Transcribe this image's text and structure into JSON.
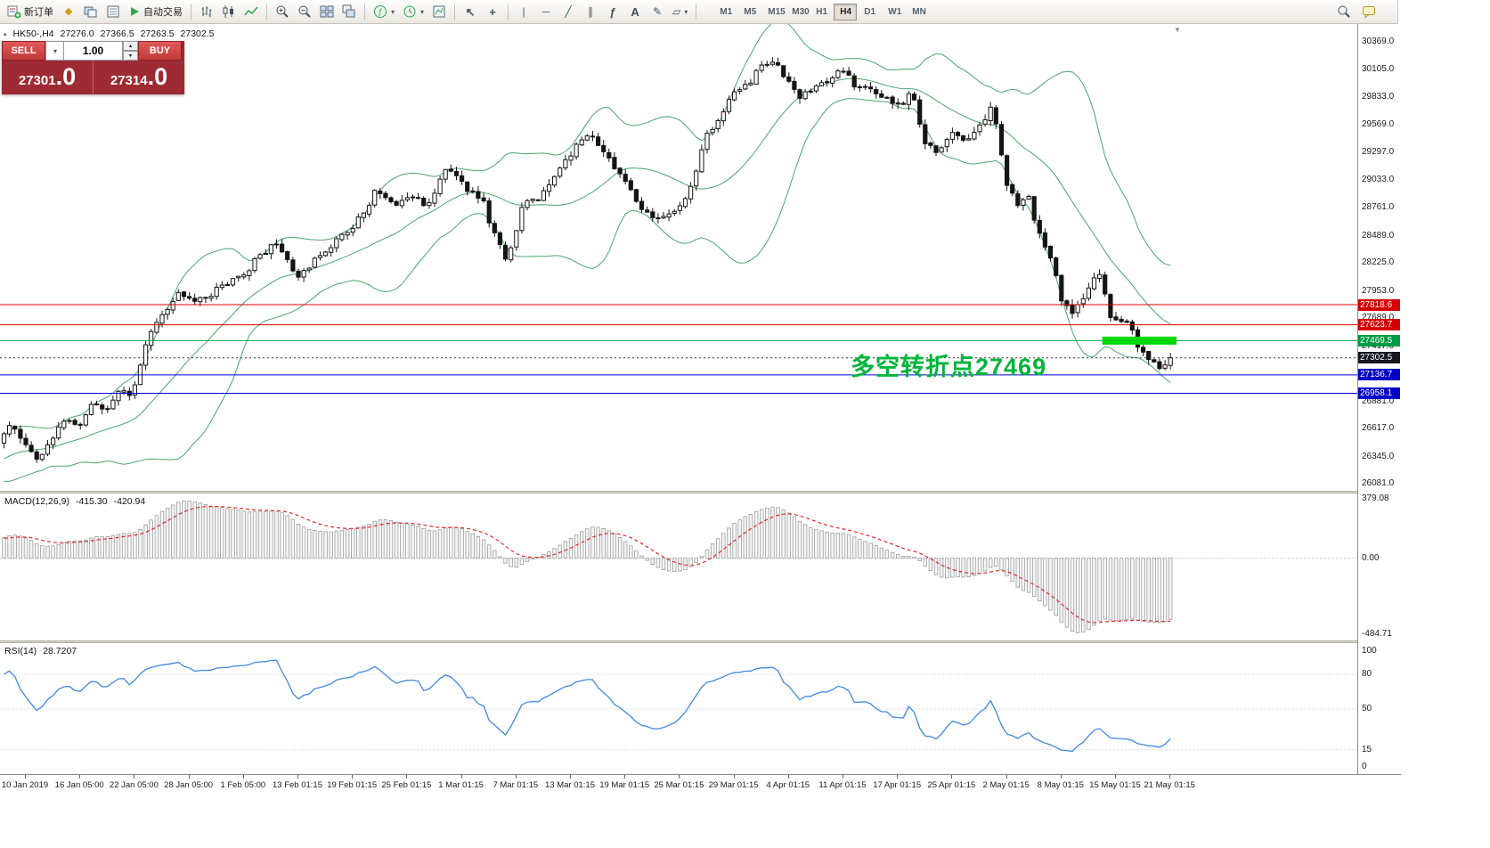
{
  "icons": {
    "diamond": "◆",
    "chevron_down": "▾",
    "chevron_up": "▴",
    "cursor": "↖",
    "crosshair": "+",
    "vertical_line": "|",
    "horizontal_line": "─",
    "trendline": "╱",
    "channel": "∥",
    "fibonacci": "ƒ",
    "text_tool": "A",
    "label_tool": "✎",
    "shapes": "▱",
    "expand": "▴",
    "shift_marker": "▼"
  },
  "toolbar": {
    "new_order_label": "新订单",
    "autotrading_label": "自动交易",
    "timeframes": [
      "M1",
      "M5",
      "M15",
      "M30",
      "H1",
      "H4",
      "D1",
      "W1",
      "MN"
    ],
    "active_timeframe": "H4"
  },
  "trade_panel": {
    "sell_label": "SELL",
    "buy_label": "BUY",
    "volume": "1.00",
    "sell_price_int": "27301",
    "sell_price_frac": ".0",
    "buy_price_int": "27314",
    "buy_price_frac": ".0"
  },
  "chart": {
    "info": {
      "symbol_period": "HK50-,H4",
      "open": "27276.0",
      "high": "27366.5",
      "low": "27263.5",
      "close": "27302.5"
    },
    "annotation": "多空转折点27469",
    "price_axis": [
      "30369.0",
      "30105.0",
      "29833.0",
      "29569.0",
      "29297.0",
      "29033.0",
      "28761.0",
      "28489.0",
      "28225.0",
      "27953.0",
      "27689.0",
      "27417.0",
      "27145.0",
      "26881.0",
      "26617.0",
      "26345.0",
      "26081.0"
    ],
    "levels": [
      {
        "label": "27818.6",
        "value": 27818.6,
        "line": "#dd0000",
        "tag": "#d40000"
      },
      {
        "label": "27623.7",
        "value": 27623.7,
        "line": "#dd0000",
        "tag": "#d40000"
      },
      {
        "label": "27469.5",
        "value": 27469.5,
        "line": "#00a84e",
        "tag": "#009a42"
      },
      {
        "label": "27302.5",
        "value": 27302.5,
        "line": "#32323c",
        "tag": "#16161e",
        "current": true
      },
      {
        "label": "27136.7",
        "value": 27136.7,
        "line": "#0000dd",
        "tag": "#0000c8"
      },
      {
        "label": "26958.1",
        "value": 26958.1,
        "line": "#0000dd",
        "tag": "#0000c8"
      }
    ],
    "time_axis": [
      "10 Jan 2019",
      "16 Jan 05:00",
      "22 Jan 05:00",
      "28 Jan 05:00",
      "1 Feb 05:00",
      "13 Feb 01:15",
      "19 Feb 01:15",
      "25 Feb 01:15",
      "1 Mar 01:15",
      "7 Mar 01:15",
      "13 Mar 01:15",
      "19 Mar 01:15",
      "25 Mar 01:15",
      "29 Mar 01:15",
      "4 Apr 01:15",
      "11 Apr 01:15",
      "17 Apr 01:15",
      "25 Apr 01:15",
      "2 May 01:15",
      "8 May 01:15",
      "15 May 01:15",
      "21 May 01:15"
    ]
  },
  "macd": {
    "name": "MACD(12,26,9)",
    "value": "-415.30",
    "signal": "-420.94",
    "axis": [
      "379.08",
      "0.00",
      "-484.71"
    ]
  },
  "rsi": {
    "name": "RSI(14)",
    "value": "28.7207",
    "axis": [
      "100",
      "80",
      "50",
      "15",
      "0"
    ]
  },
  "colors": {
    "bollinger": "#4aa56e",
    "bull": "#ffffff",
    "bear": "#141414",
    "outline": "#141414",
    "macd_hist_fill": "#f6f6f6",
    "macd_hist_stroke": "#9c9c9c",
    "macd_signal": "#e02828",
    "rsi_line": "#4187e0",
    "annotation": "#00b43c",
    "highlight": "#00d800"
  },
  "chart_data": {
    "type": "candlestick",
    "symbol": "HK50-",
    "timeframe": "H4",
    "candles": 215,
    "warmup": 45,
    "pre_trend": [
      25650,
      26480
    ],
    "last_close": 27302.5,
    "price_range": [
      26081,
      30369
    ],
    "highlight_price": 27469.5,
    "indicators": {
      "bollinger_period": 20,
      "bollinger_dev": 2,
      "macd": [
        12,
        26,
        9
      ],
      "rsi": 14
    },
    "anchors": [
      [
        0,
        26550
      ],
      [
        0.008,
        26680
      ],
      [
        0.016,
        26460
      ],
      [
        0.028,
        26310
      ],
      [
        0.04,
        26480
      ],
      [
        0.052,
        26700
      ],
      [
        0.062,
        26620
      ],
      [
        0.075,
        26850
      ],
      [
        0.088,
        26780
      ],
      [
        0.1,
        27000
      ],
      [
        0.108,
        26900
      ],
      [
        0.122,
        27480
      ],
      [
        0.132,
        27650
      ],
      [
        0.142,
        27800
      ],
      [
        0.152,
        27950
      ],
      [
        0.163,
        27850
      ],
      [
        0.175,
        27900
      ],
      [
        0.19,
        28010
      ],
      [
        0.205,
        28110
      ],
      [
        0.22,
        28300
      ],
      [
        0.235,
        28410
      ],
      [
        0.25,
        28060
      ],
      [
        0.262,
        28210
      ],
      [
        0.275,
        28350
      ],
      [
        0.29,
        28500
      ],
      [
        0.305,
        28650
      ],
      [
        0.32,
        28950
      ],
      [
        0.335,
        28800
      ],
      [
        0.35,
        28860
      ],
      [
        0.365,
        28790
      ],
      [
        0.38,
        29150
      ],
      [
        0.395,
        28950
      ],
      [
        0.41,
        28840
      ],
      [
        0.42,
        28500
      ],
      [
        0.432,
        28220
      ],
      [
        0.445,
        28840
      ],
      [
        0.46,
        28860
      ],
      [
        0.475,
        29100
      ],
      [
        0.49,
        29350
      ],
      [
        0.502,
        29480
      ],
      [
        0.515,
        29300
      ],
      [
        0.528,
        29100
      ],
      [
        0.54,
        28850
      ],
      [
        0.553,
        28660
      ],
      [
        0.565,
        28700
      ],
      [
        0.578,
        28760
      ],
      [
        0.59,
        28960
      ],
      [
        0.602,
        29470
      ],
      [
        0.613,
        29600
      ],
      [
        0.625,
        29850
      ],
      [
        0.637,
        29950
      ],
      [
        0.648,
        30100
      ],
      [
        0.658,
        30170
      ],
      [
        0.67,
        30040
      ],
      [
        0.682,
        29830
      ],
      [
        0.695,
        29910
      ],
      [
        0.707,
        30000
      ],
      [
        0.718,
        30080
      ],
      [
        0.73,
        29950
      ],
      [
        0.742,
        29940
      ],
      [
        0.755,
        29830
      ],
      [
        0.768,
        29740
      ],
      [
        0.778,
        29870
      ],
      [
        0.79,
        29390
      ],
      [
        0.8,
        29310
      ],
      [
        0.812,
        29480
      ],
      [
        0.825,
        29440
      ],
      [
        0.838,
        29570
      ],
      [
        0.848,
        29780
      ],
      [
        0.858,
        29050
      ],
      [
        0.868,
        28790
      ],
      [
        0.878,
        28870
      ],
      [
        0.888,
        28490
      ],
      [
        0.898,
        28270
      ],
      [
        0.908,
        27790
      ],
      [
        0.918,
        27750
      ],
      [
        0.928,
        27920
      ],
      [
        0.938,
        28180
      ],
      [
        0.948,
        27710
      ],
      [
        0.956,
        27660
      ],
      [
        0.964,
        27620
      ],
      [
        0.975,
        27360
      ],
      [
        0.985,
        27250
      ],
      [
        0.993,
        27150
      ],
      [
        1,
        27302.5
      ]
    ]
  }
}
